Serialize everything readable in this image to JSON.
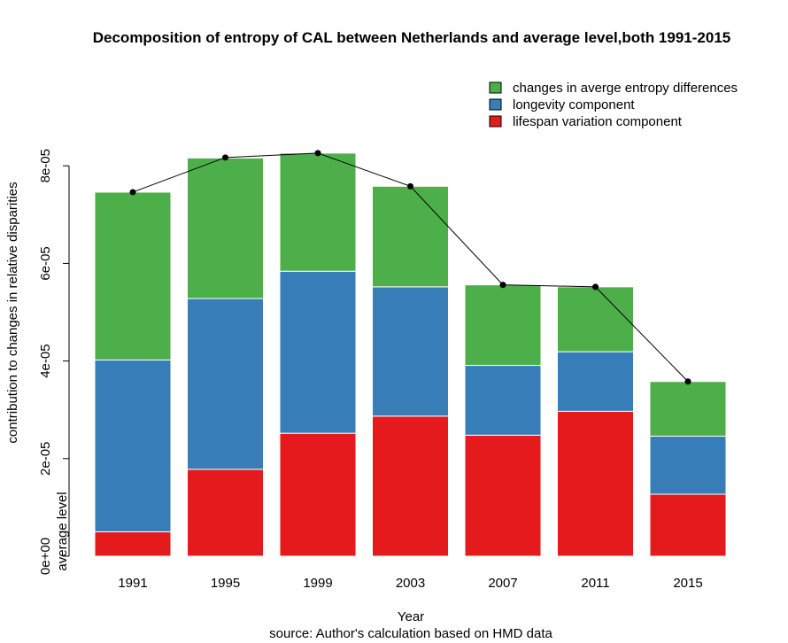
{
  "chart_data": {
    "type": "bar",
    "stacked": true,
    "title": "Decomposition of entropy of CAL between Netherlands and average level,both 1991-2015",
    "xlabel": "Year",
    "ylabel": "contribution to changes in relative disparities",
    "caption": "source: Author's calculation based on HMD data",
    "baseline_label": "average level",
    "categories": [
      "1991",
      "1995",
      "1999",
      "2003",
      "2007",
      "2011",
      "2015"
    ],
    "ylim": [
      0,
      8.3e-05
    ],
    "yticks": [
      0,
      2e-05,
      4e-05,
      6e-05,
      8e-05
    ],
    "ytick_labels": [
      "0e+00",
      "2e-05",
      "4e-05",
      "6e-05",
      "8e-05"
    ],
    "series": [
      {
        "name": "lifespan variation component",
        "color": "#E41A1C",
        "values": [
          5e-06,
          1.78e-05,
          2.52e-05,
          2.87e-05,
          2.48e-05,
          2.97e-05,
          1.27e-05
        ]
      },
      {
        "name": "longevity component",
        "color": "#377EB8",
        "values": [
          3.52e-05,
          3.5e-05,
          3.32e-05,
          2.65e-05,
          1.43e-05,
          1.22e-05,
          1.19e-05
        ]
      },
      {
        "name": "changes in averge entropy differences",
        "color": "#4DAF4A",
        "values": [
          3.44e-05,
          2.88e-05,
          2.42e-05,
          2.06e-05,
          1.65e-05,
          1.33e-05,
          1.12e-05
        ]
      }
    ],
    "line": {
      "values": [
        7.46e-05,
        8.17e-05,
        8.26e-05,
        7.58e-05,
        5.56e-05,
        5.52e-05,
        3.58e-05
      ],
      "color": "#000000"
    },
    "legend": {
      "position": "top-right",
      "entries": [
        {
          "label": "changes in averge entropy differences",
          "color": "#4DAF4A"
        },
        {
          "label": "longevity component",
          "color": "#377EB8"
        },
        {
          "label": "lifespan variation component",
          "color": "#E41A1C"
        }
      ]
    },
    "grid": false
  }
}
